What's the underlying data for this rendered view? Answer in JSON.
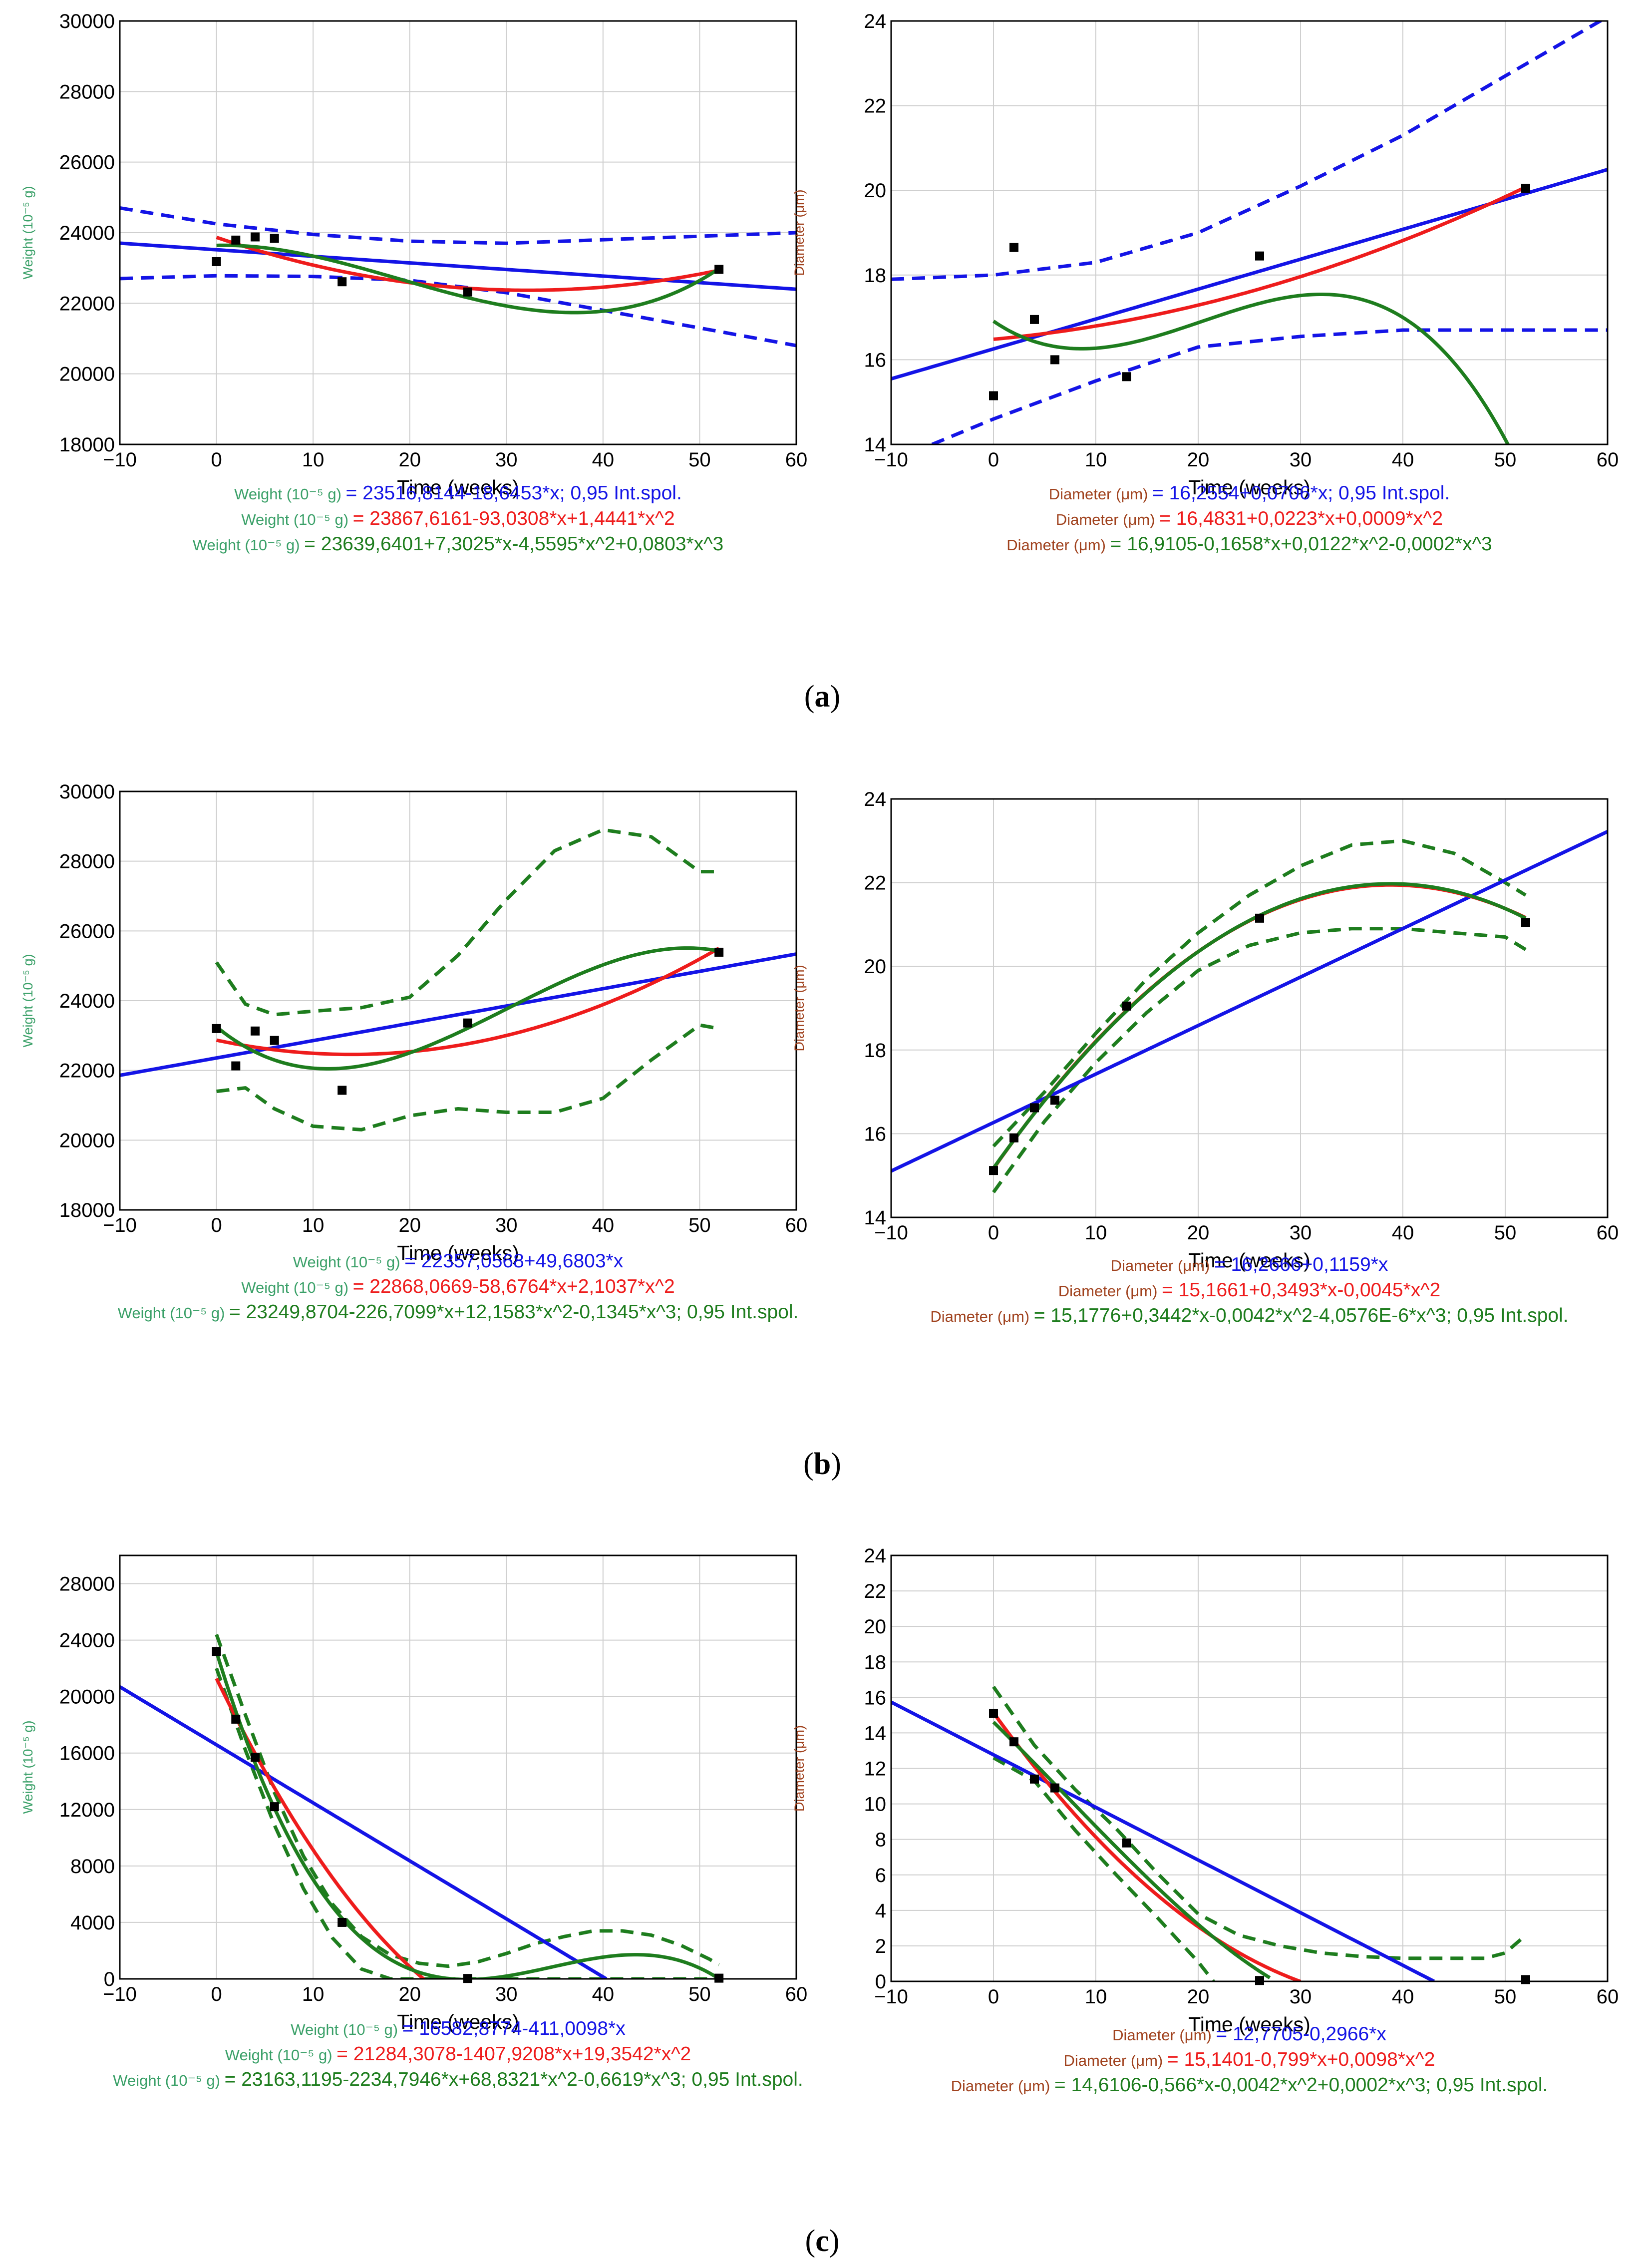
{
  "colors": {
    "linear": "#1414e6",
    "quadratic": "#ee1c1c",
    "cubic": "#1e7d1e",
    "weight_label": "#3aa068",
    "diameter_label": "#a0421e",
    "grid": "#cfcfcf",
    "points": "#000000"
  },
  "panel_labels": [
    "a",
    "b",
    "c"
  ],
  "chart_data": [
    {
      "id": "a-left",
      "type": "line",
      "panel": "a",
      "xlabel": "Time (weeks)",
      "ylabel": "Weight (10⁻⁵ g)",
      "label_color": "#3aa068",
      "xlim": [
        -10,
        60
      ],
      "ylim": [
        18000,
        30000
      ],
      "xticks": [
        -10,
        0,
        10,
        20,
        30,
        40,
        50,
        60
      ],
      "yticks": [
        18000,
        20000,
        22000,
        24000,
        26000,
        28000,
        30000
      ],
      "ytick_labels": [
        "18000",
        "20000",
        "22000",
        "24000",
        "26000",
        "28000",
        "30000"
      ],
      "points": {
        "x": [
          0,
          2,
          4,
          6,
          13,
          26,
          52
        ],
        "y": [
          23180,
          23790,
          23880,
          23840,
          22610,
          22320,
          22960
        ]
      },
      "fits": [
        {
          "kind": "linear",
          "color": "#1414e6",
          "coef": [
            23516.8144,
            -18.6453
          ],
          "range": [
            -10,
            60
          ]
        },
        {
          "kind": "quadratic",
          "color": "#ee1c1c",
          "coef": [
            23867.6161,
            -93.0308,
            1.4441
          ],
          "range": [
            0,
            52
          ]
        },
        {
          "kind": "cubic",
          "color": "#1e7d1e",
          "coef": [
            23639.6401,
            7.3025,
            -4.5595,
            0.0803
          ],
          "range": [
            0,
            52
          ]
        }
      ],
      "bands": [
        {
          "color": "#1414e6",
          "x": [
            -10,
            0,
            10,
            20,
            30,
            40,
            50,
            60
          ],
          "y": [
            24700,
            24250,
            23950,
            23760,
            23700,
            23800,
            23900,
            24000
          ]
        },
        {
          "color": "#1414e6",
          "x": [
            -10,
            0,
            10,
            20,
            30,
            40,
            50,
            60
          ],
          "y": [
            22700,
            22780,
            22760,
            22650,
            22300,
            21800,
            21300,
            20800
          ]
        }
      ],
      "equations": [
        {
          "prefix": "Weight (10⁻⁵ g)",
          "text": "= 23516,8144-18,6453*x; 0,95 Int.spol.",
          "color": "#1414e6"
        },
        {
          "prefix": "Weight (10⁻⁵ g)",
          "text": "= 23867,6161-93,0308*x+1,4441*x^2",
          "color": "#ee1c1c"
        },
        {
          "prefix": "Weight (10⁻⁵ g)",
          "text": "= 23639,6401+7,3025*x-4,5595*x^2+0,0803*x^3",
          "color": "#1e7d1e"
        }
      ]
    },
    {
      "id": "a-right",
      "type": "line",
      "panel": "a",
      "xlabel": "Time (weeks)",
      "ylabel": "Diameter (μm)",
      "label_color": "#a0421e",
      "xlim": [
        -10,
        60
      ],
      "ylim": [
        14,
        24
      ],
      "xticks": [
        -10,
        0,
        10,
        20,
        30,
        40,
        50,
        60
      ],
      "yticks": [
        14,
        16,
        18,
        20,
        22,
        24
      ],
      "ytick_labels": [
        "14",
        "16",
        "18",
        "20",
        "22",
        "24"
      ],
      "points": {
        "x": [
          0,
          2,
          4,
          6,
          13,
          26,
          52
        ],
        "y": [
          15.15,
          18.65,
          16.95,
          16.0,
          15.6,
          18.45,
          20.05
        ]
      },
      "fits": [
        {
          "kind": "linear",
          "color": "#1414e6",
          "coef": [
            16.2554,
            0.0706
          ],
          "range": [
            -10,
            60
          ]
        },
        {
          "kind": "quadratic",
          "color": "#ee1c1c",
          "coef": [
            16.4831,
            0.0223,
            0.0009
          ],
          "range": [
            0,
            52
          ]
        },
        {
          "kind": "cubic",
          "color": "#1e7d1e",
          "coef": [
            16.9105,
            -0.1658,
            0.0122,
            -0.0002
          ],
          "range": [
            0,
            52
          ]
        }
      ],
      "bands": [
        {
          "color": "#1414e6",
          "x": [
            -10,
            0,
            10,
            20,
            30,
            40,
            50,
            60
          ],
          "y": [
            17.9,
            18.0,
            18.3,
            19.0,
            20.1,
            21.3,
            22.7,
            24.1
          ]
        },
        {
          "color": "#1414e6",
          "x": [
            -6,
            0,
            10,
            20,
            30,
            40,
            50,
            60
          ],
          "y": [
            14.0,
            14.6,
            15.5,
            16.3,
            16.55,
            16.7,
            16.7,
            16.7
          ]
        }
      ],
      "equations": [
        {
          "prefix": "Diameter (μm)",
          "text": "= 16,2554+0,0706*x; 0,95 Int.spol.",
          "color": "#1414e6"
        },
        {
          "prefix": "Diameter (μm)",
          "text": "= 16,4831+0,0223*x+0,0009*x^2",
          "color": "#ee1c1c"
        },
        {
          "prefix": "Diameter (μm)",
          "text": "= 16,9105-0,1658*x+0,0122*x^2-0,0002*x^3",
          "color": "#1e7d1e"
        }
      ]
    },
    {
      "id": "b-left",
      "type": "line",
      "panel": "b",
      "xlabel": "Time (weeks)",
      "ylabel": "Weight (10⁻⁵ g)",
      "label_color": "#3aa068",
      "xlim": [
        -10,
        60
      ],
      "ylim": [
        18000,
        30000
      ],
      "xticks": [
        -10,
        0,
        10,
        20,
        30,
        40,
        50,
        60
      ],
      "yticks": [
        18000,
        20000,
        22000,
        24000,
        26000,
        28000,
        30000
      ],
      "ytick_labels": [
        "18000",
        "20000",
        "22000",
        "24000",
        "26000",
        "28000",
        "30000"
      ],
      "points": {
        "x": [
          0,
          2,
          4,
          6,
          13,
          26,
          52
        ],
        "y": [
          23200,
          22130,
          23130,
          22860,
          21430,
          23360,
          25390
        ]
      },
      "fits": [
        {
          "kind": "linear",
          "color": "#1414e6",
          "coef": [
            22357.0568,
            49.6803
          ],
          "range": [
            -10,
            60
          ]
        },
        {
          "kind": "quadratic",
          "color": "#ee1c1c",
          "coef": [
            22868.0669,
            -58.6764,
            2.1037
          ],
          "range": [
            0,
            52
          ]
        },
        {
          "kind": "cubic",
          "color": "#1e7d1e",
          "coef": [
            23249.8704,
            -226.7099,
            12.1583,
            -0.1345
          ],
          "range": [
            0,
            52
          ]
        }
      ],
      "bands": [
        {
          "color": "#1e7d1e",
          "x": [
            0,
            3,
            6,
            10,
            15,
            20,
            25,
            30,
            35,
            40,
            45,
            50,
            52
          ],
          "y": [
            25100,
            23900,
            23600,
            23700,
            23800,
            24100,
            25300,
            26900,
            28300,
            28900,
            28700,
            27700,
            27700
          ]
        },
        {
          "color": "#1e7d1e",
          "x": [
            0,
            3,
            6,
            10,
            15,
            20,
            25,
            30,
            35,
            40,
            45,
            50,
            52
          ],
          "y": [
            21400,
            21500,
            20900,
            20400,
            20300,
            20700,
            20900,
            20800,
            20800,
            21200,
            22300,
            23300,
            23200
          ]
        }
      ],
      "equations": [
        {
          "prefix": "Weight (10⁻⁵ g)",
          "text": "= 22357,0568+49,6803*x",
          "color": "#1414e6"
        },
        {
          "prefix": "Weight (10⁻⁵ g)",
          "text": "= 22868,0669-58,6764*x+2,1037*x^2",
          "color": "#ee1c1c"
        },
        {
          "prefix": "Weight (10⁻⁵ g)",
          "text": "= 23249,8704-226,7099*x+12,1583*x^2-0,1345*x^3; 0,95 Int.spol.",
          "color": "#1e7d1e"
        }
      ]
    },
    {
      "id": "b-right",
      "type": "line",
      "panel": "b",
      "xlabel": "Time (weeks)",
      "ylabel": "Diameter (μm)",
      "label_color": "#a0421e",
      "xlim": [
        -10,
        60
      ],
      "ylim": [
        14,
        24
      ],
      "xticks": [
        -10,
        0,
        10,
        20,
        30,
        40,
        50,
        60
      ],
      "yticks": [
        14,
        16,
        18,
        20,
        22,
        24
      ],
      "ytick_labels": [
        "14",
        "16",
        "18",
        "20",
        "22",
        "24"
      ],
      "points": {
        "x": [
          0,
          2,
          4,
          6,
          13,
          26,
          52
        ],
        "y": [
          15.12,
          15.9,
          16.62,
          16.8,
          19.05,
          21.15,
          21.05
        ]
      },
      "fits": [
        {
          "kind": "linear",
          "color": "#1414e6",
          "coef": [
            16.2666,
            0.1159
          ],
          "range": [
            -10,
            60
          ]
        },
        {
          "kind": "quadratic",
          "color": "#ee1c1c",
          "coef": [
            15.1661,
            0.3493,
            -0.0045
          ],
          "range": [
            0,
            52
          ]
        },
        {
          "kind": "cubic",
          "color": "#1e7d1e",
          "coef": [
            15.1776,
            0.3442,
            -0.0042,
            -4.0576e-06
          ],
          "range": [
            0,
            52
          ]
        }
      ],
      "bands": [
        {
          "color": "#1e7d1e",
          "x": [
            0,
            5,
            10,
            15,
            20,
            25,
            30,
            35,
            40,
            45,
            50,
            52
          ],
          "y": [
            15.7,
            17.0,
            18.4,
            19.7,
            20.8,
            21.7,
            22.4,
            22.9,
            23.0,
            22.7,
            22.0,
            21.7
          ]
        },
        {
          "color": "#1e7d1e",
          "x": [
            0,
            5,
            10,
            15,
            20,
            25,
            30,
            35,
            40,
            45,
            50,
            52
          ],
          "y": [
            14.6,
            16.3,
            17.7,
            18.9,
            19.9,
            20.5,
            20.8,
            20.9,
            20.9,
            20.8,
            20.7,
            20.4
          ]
        }
      ],
      "equations": [
        {
          "prefix": "Diameter (μm)",
          "text": "= 16,2666+0,1159*x",
          "color": "#1414e6"
        },
        {
          "prefix": "Diameter (μm)",
          "text": "= 15,1661+0,3493*x-0,0045*x^2",
          "color": "#ee1c1c"
        },
        {
          "prefix": "Diameter (μm)",
          "text": "= 15,1776+0,3442*x-0,0042*x^2-4,0576E-6*x^3; 0,95 Int.spol.",
          "color": "#1e7d1e"
        }
      ]
    },
    {
      "id": "c-left",
      "type": "line",
      "panel": "c",
      "xlabel": "Time (weeks)",
      "ylabel": "Weight (10⁻⁵ g)",
      "label_color": "#3aa068",
      "xlim": [
        -10,
        60
      ],
      "ylim": [
        0,
        30000
      ],
      "xticks": [
        -10,
        0,
        10,
        20,
        30,
        40,
        50,
        60
      ],
      "yticks": [
        0,
        4000,
        8000,
        12000,
        16000,
        20000,
        24000,
        28000
      ],
      "ytick_labels": [
        "0",
        "4000",
        "8000",
        "12000",
        "16000",
        "20000",
        "24000",
        "28000"
      ],
      "points": {
        "x": [
          0,
          2,
          4,
          6,
          13,
          26,
          52
        ],
        "y": [
          23200,
          18400,
          15700,
          12200,
          4000,
          30,
          50
        ]
      },
      "fits": [
        {
          "kind": "linear",
          "color": "#1414e6",
          "coef": [
            16582.8774,
            -411.0098
          ],
          "range": [
            -10,
            40.35
          ]
        },
        {
          "kind": "quadratic",
          "color": "#ee1c1c",
          "coef": [
            21284.3078,
            -1407.9208,
            19.3542
          ],
          "range": [
            0,
            22
          ]
        },
        {
          "kind": "cubic",
          "color": "#1e7d1e",
          "coef": [
            23163.1195,
            -2234.7946,
            68.8321,
            -0.6619
          ],
          "range": [
            0,
            52
          ]
        }
      ],
      "bands": [
        {
          "color": "#1e7d1e",
          "x": [
            0,
            3,
            6,
            9,
            12,
            15,
            18,
            21,
            24,
            27,
            30,
            33,
            36,
            39,
            42,
            45,
            48,
            51,
            52
          ],
          "y": [
            24400,
            18700,
            13200,
            8700,
            5300,
            3000,
            1700,
            1100,
            900,
            1200,
            1800,
            2500,
            3000,
            3400,
            3400,
            3100,
            2400,
            1400,
            1000
          ]
        },
        {
          "color": "#1e7d1e",
          "x": [
            0,
            3,
            6,
            9,
            12,
            15,
            18,
            21,
            24,
            27,
            30,
            33,
            36,
            39,
            42,
            45,
            48,
            51,
            52
          ],
          "y": [
            22000,
            16200,
            10900,
            6400,
            2900,
            700,
            0,
            0,
            0,
            0,
            0,
            0,
            0,
            0,
            0,
            0,
            0,
            0,
            0
          ]
        }
      ],
      "equations": [
        {
          "prefix": "Weight (10⁻⁵ g)",
          "text": "= 16582,8774-411,0098*x",
          "color": "#1414e6"
        },
        {
          "prefix": "Weight (10⁻⁵ g)",
          "text": "= 21284,3078-1407,9208*x+19,3542*x^2",
          "color": "#ee1c1c"
        },
        {
          "prefix": "Weight (10⁻⁵ g)",
          "text": "= 23163,1195-2234,7946*x+68,8321*x^2-0,6619*x^3; 0,95 Int.spol.",
          "color": "#1e7d1e"
        }
      ]
    },
    {
      "id": "c-right",
      "type": "line",
      "panel": "c",
      "xlabel": "Time (weeks)",
      "ylabel": "Diameter (μm)",
      "label_color": "#a0421e",
      "xlim": [
        -10,
        60
      ],
      "ylim": [
        0,
        24
      ],
      "xticks": [
        -10,
        0,
        10,
        20,
        30,
        40,
        50,
        60
      ],
      "yticks": [
        0,
        2,
        4,
        6,
        8,
        10,
        12,
        14,
        16,
        18,
        20,
        22,
        24
      ],
      "ytick_labels": [
        "0",
        "2",
        "4",
        "6",
        "8",
        "10",
        "12",
        "14",
        "16",
        "18",
        "20",
        "22",
        "24"
      ],
      "points": {
        "x": [
          0,
          2,
          4,
          6,
          13,
          26,
          52
        ],
        "y": [
          15.1,
          13.5,
          11.4,
          10.9,
          7.8,
          0.05,
          0.1
        ]
      },
      "fits": [
        {
          "kind": "linear",
          "color": "#1414e6",
          "coef": [
            12.7705,
            -0.2966
          ],
          "range": [
            -10,
            43.05
          ]
        },
        {
          "kind": "quadratic",
          "color": "#ee1c1c",
          "coef": [
            15.1401,
            -0.799,
            0.0098
          ],
          "range": [
            0,
            30
          ]
        },
        {
          "kind": "cubic",
          "color": "#1e7d1e",
          "coef": [
            14.6106,
            -0.566,
            -0.0042,
            0.0002
          ],
          "range": [
            0,
            27
          ]
        }
      ],
      "bands": [
        {
          "color": "#1e7d1e",
          "x": [
            0,
            4,
            8,
            12,
            16,
            20,
            24,
            28,
            32,
            36,
            40,
            44,
            48,
            50,
            52
          ],
          "y": [
            16.6,
            13.3,
            10.8,
            8.6,
            6.1,
            3.8,
            2.6,
            2.0,
            1.6,
            1.4,
            1.3,
            1.3,
            1.3,
            1.6,
            2.6
          ]
        },
        {
          "color": "#1e7d1e",
          "x": [
            0,
            4,
            8,
            12,
            16,
            20,
            21.5
          ],
          "y": [
            12.6,
            11.3,
            8.5,
            6.0,
            3.6,
            1.1,
            0
          ]
        }
      ],
      "equations": [
        {
          "prefix": "Diameter (μm)",
          "text": "= 12,7705-0,2966*x",
          "color": "#1414e6"
        },
        {
          "prefix": "Diameter (μm)",
          "text": "= 15,1401-0,799*x+0,0098*x^2",
          "color": "#ee1c1c"
        },
        {
          "prefix": "Diameter (μm)",
          "text": "= 14,6106-0,566*x-0,0042*x^2+0,0002*x^3; 0,95 Int.spol.",
          "color": "#1e7d1e"
        }
      ]
    }
  ]
}
